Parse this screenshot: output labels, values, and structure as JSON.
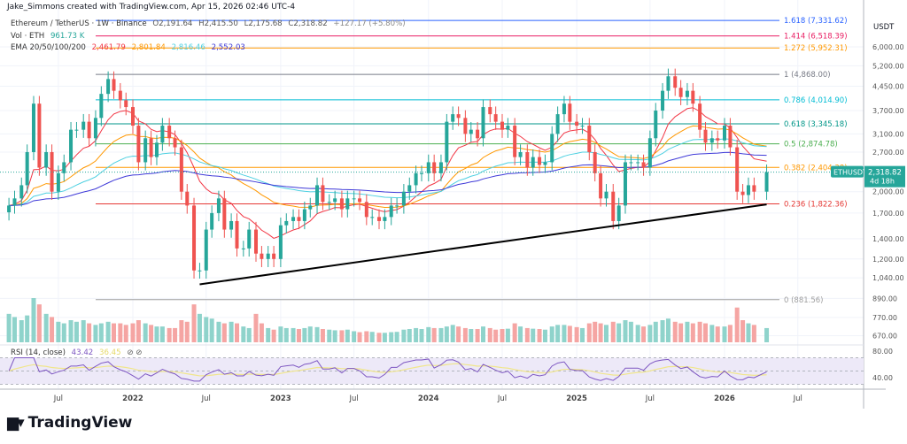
{
  "header": {
    "attribution": "Jake_Simmons created with TradingView.com, Apr 15, 2026 02:46 UTC-4"
  },
  "legend": {
    "symbol": "Ethereum / TetherUS · 1W · Binance",
    "open": "O2,191.64",
    "high": "H2,415.50",
    "low": "L2,175.68",
    "close": "C2,318.82",
    "change": "+127.17 (+5.80%)",
    "vol_label": "Vol · ETH",
    "vol_value": "961.73 K",
    "ema_label": "EMA 20/50/100/200",
    "ema20": "2,461.79",
    "ema50": "2,801.84",
    "ema100": "2,816.46",
    "ema200": "2,552.03",
    "rsi_label": "RSI (14, close)",
    "rsi_value": "43.42",
    "rsi_ma": "36.45"
  },
  "colors": {
    "up": "#26a69a",
    "down": "#ef5350",
    "ema20": "#f23645",
    "ema50": "#ff9800",
    "ema100": "#4dd0e1",
    "ema200": "#3f3ad8",
    "rsi": "#7e57c2",
    "rsi_ma": "#f0e68c",
    "price_tag": "#26a69a"
  },
  "price_axis": {
    "currency": "USDT",
    "ticks": [
      "6,000.00",
      "5,200.00",
      "4,450.00",
      "3,700.00",
      "3,100.00",
      "2,700.00",
      "2,000.00",
      "1,700.00",
      "1,400.00",
      "1,200.00",
      "1,040.00",
      "890.00",
      "770.00",
      "670.00"
    ],
    "scale": "log"
  },
  "rsi_axis": {
    "ticks": [
      "80.00",
      "40.00"
    ]
  },
  "time_axis": {
    "ticks": [
      "Jul",
      "2022",
      "Jul",
      "2023",
      "Jul",
      "2024",
      "Jul",
      "2025",
      "Jul",
      "2026",
      "Jul"
    ]
  },
  "current": {
    "symbol": "ETHUSDT",
    "price": "2,318.82",
    "countdown": "4d 18h"
  },
  "fib_levels": [
    {
      "label": "1.618 (7,331.62)",
      "price": 7331.62,
      "color": "#2962ff"
    },
    {
      "label": "1.414 (6,518.39)",
      "price": 6518.39,
      "color": "#e91e63"
    },
    {
      "label": "1.272 (5,952.31)",
      "price": 5952.31,
      "color": "#ff9800"
    },
    {
      "label": "1 (4,868.00)",
      "price": 4868.0,
      "color": "#787b86"
    },
    {
      "label": "0.786 (4,014.90)",
      "price": 4014.9,
      "color": "#00bcd4"
    },
    {
      "label": "0.618 (3,345.18)",
      "price": 3345.18,
      "color": "#009688"
    },
    {
      "label": "0.5 (2,874.78)",
      "price": 2874.78,
      "color": "#4caf50"
    },
    {
      "label": "0.382 (2,404.38)",
      "price": 2404.38,
      "color": "#ff9800"
    },
    {
      "label": "0.236 (1,822.36)",
      "price": 1822.36,
      "color": "#e53935"
    },
    {
      "label": "0 (881.56)",
      "price": 881.56,
      "color": "#9e9e9e"
    }
  ],
  "chart_data": {
    "type": "candlestick",
    "title": "Ethereum / TetherUS · 1W · Binance",
    "yscale": "log",
    "ylim": [
      640,
      7600
    ],
    "trendline": {
      "from": [
        "2022-06-15",
        990
      ],
      "to": [
        "2026-04-15",
        1816
      ]
    },
    "x": [
      "2021-03-01",
      "2021-03-15",
      "2021-04-01",
      "2021-04-15",
      "2021-05-01",
      "2021-05-15",
      "2021-06-01",
      "2021-06-15",
      "2021-07-01",
      "2021-07-15",
      "2021-08-01",
      "2021-08-15",
      "2021-09-01",
      "2021-09-15",
      "2021-10-01",
      "2021-10-15",
      "2021-11-01",
      "2021-11-15",
      "2021-12-01",
      "2021-12-15",
      "2022-01-01",
      "2022-01-15",
      "2022-02-01",
      "2022-02-15",
      "2022-03-01",
      "2022-03-15",
      "2022-04-01",
      "2022-04-15",
      "2022-05-01",
      "2022-05-15",
      "2022-06-01",
      "2022-06-15",
      "2022-07-01",
      "2022-07-15",
      "2022-08-01",
      "2022-08-15",
      "2022-09-01",
      "2022-09-15",
      "2022-10-01",
      "2022-10-15",
      "2022-11-01",
      "2022-11-15",
      "2022-12-01",
      "2022-12-15",
      "2023-01-01",
      "2023-01-15",
      "2023-02-01",
      "2023-02-15",
      "2023-03-01",
      "2023-03-15",
      "2023-04-01",
      "2023-04-15",
      "2023-05-01",
      "2023-05-15",
      "2023-06-01",
      "2023-06-15",
      "2023-07-01",
      "2023-07-15",
      "2023-08-01",
      "2023-08-15",
      "2023-09-01",
      "2023-09-15",
      "2023-10-01",
      "2023-10-15",
      "2023-11-01",
      "2023-11-15",
      "2023-12-01",
      "2023-12-15",
      "2024-01-01",
      "2024-01-15",
      "2024-02-01",
      "2024-02-15",
      "2024-03-01",
      "2024-03-15",
      "2024-04-01",
      "2024-04-15",
      "2024-05-01",
      "2024-05-15",
      "2024-06-01",
      "2024-06-15",
      "2024-07-01",
      "2024-07-15",
      "2024-08-01",
      "2024-08-15",
      "2024-09-01",
      "2024-09-15",
      "2024-10-01",
      "2024-10-15",
      "2024-11-01",
      "2024-11-15",
      "2024-12-01",
      "2024-12-15",
      "2025-01-01",
      "2025-01-15",
      "2025-02-01",
      "2025-02-15",
      "2025-03-01",
      "2025-03-15",
      "2025-04-01",
      "2025-04-15",
      "2025-05-01",
      "2025-05-15",
      "2025-06-01",
      "2025-06-15",
      "2025-07-01",
      "2025-07-15",
      "2025-08-01",
      "2025-08-15",
      "2025-09-01",
      "2025-09-15",
      "2025-10-01",
      "2025-10-15",
      "2025-11-01",
      "2025-11-15",
      "2025-12-01",
      "2025-12-15",
      "2026-01-01",
      "2026-01-15",
      "2026-02-01",
      "2026-02-15",
      "2026-03-01",
      "2026-03-15",
      "2026-04-15"
    ],
    "close": [
      1800,
      1900,
      2100,
      2700,
      3900,
      2400,
      2700,
      2000,
      2300,
      2500,
      3200,
      3200,
      3400,
      3000,
      3500,
      4200,
      4700,
      4300,
      4000,
      3800,
      3300,
      2500,
      3000,
      2600,
      2900,
      3300,
      3000,
      2800,
      2000,
      1800,
      1100,
      1100,
      1500,
      1700,
      1900,
      1500,
      1600,
      1300,
      1300,
      1500,
      1250,
      1200,
      1250,
      1200,
      1550,
      1600,
      1650,
      1600,
      1750,
      1800,
      2100,
      1850,
      1850,
      1900,
      1750,
      1900,
      1900,
      1850,
      1650,
      1650,
      1600,
      1650,
      1800,
      1800,
      2000,
      2100,
      2300,
      2300,
      2500,
      2300,
      2500,
      3400,
      3600,
      3500,
      3100,
      3200,
      3000,
      3800,
      3600,
      3400,
      3200,
      3300,
      2600,
      2700,
      2400,
      2600,
      2450,
      2500,
      3100,
      3600,
      3900,
      3400,
      3300,
      3300,
      2700,
      2300,
      1900,
      2000,
      1600,
      1800,
      2500,
      2500,
      2500,
      2400,
      3000,
      3700,
      4300,
      4800,
      4400,
      4100,
      4300,
      3900,
      3200,
      2900,
      3000,
      2950,
      3300,
      2800,
      2000,
      1950,
      2100,
      2000,
      2318.82
    ],
    "volume": [
      900,
      800,
      700,
      850,
      1400,
      1200,
      900,
      800,
      650,
      600,
      700,
      650,
      700,
      600,
      550,
      600,
      650,
      600,
      600,
      550,
      600,
      700,
      600,
      550,
      500,
      500,
      450,
      450,
      700,
      650,
      1200,
      900,
      800,
      750,
      650,
      600,
      650,
      600,
      500,
      450,
      900,
      600,
      450,
      400,
      500,
      450,
      450,
      420,
      450,
      500,
      480,
      420,
      400,
      380,
      380,
      400,
      350,
      320,
      350,
      330,
      300,
      300,
      320,
      330,
      400,
      420,
      450,
      420,
      480,
      450,
      450,
      500,
      550,
      500,
      450,
      420,
      420,
      500,
      450,
      400,
      420,
      430,
      600,
      500,
      450,
      430,
      420,
      400,
      500,
      550,
      550,
      520,
      480,
      450,
      600,
      650,
      600,
      550,
      650,
      600,
      700,
      650,
      550,
      500,
      550,
      650,
      700,
      750,
      650,
      600,
      650,
      600,
      650,
      600,
      550,
      500,
      500,
      550,
      1100,
      700,
      600,
      550,
      450
    ]
  }
}
